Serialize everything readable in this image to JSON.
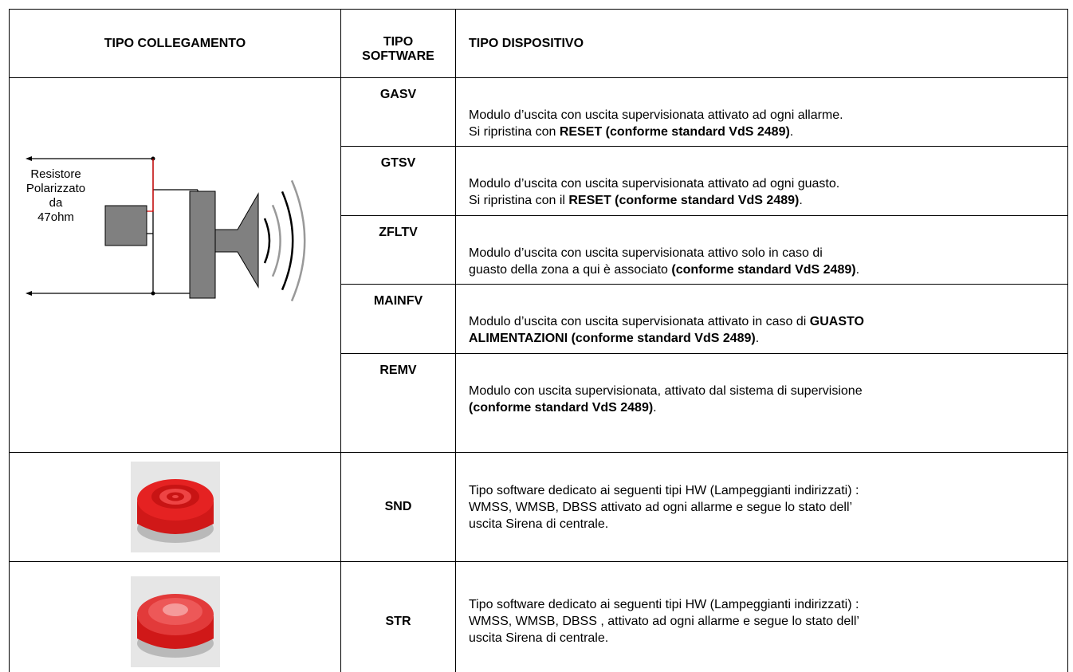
{
  "header": {
    "col1": "TIPO COLLEGAMENTO",
    "col2": "TIPO SOFTWARE",
    "col3": "TIPO DISPOSITIVO"
  },
  "diagram": {
    "labels": [
      "Resistore",
      "Polarizzato",
      "da",
      "47ohm"
    ]
  },
  "rows": [
    {
      "software": "GASV",
      "lines": [
        [
          {
            "t": "Modulo d’uscita con uscita supervisionata attivato ad ogni allarme.",
            "b": false
          }
        ],
        [
          {
            "t": "Si ripristina con ",
            "b": false
          },
          {
            "t": "RESET (conforme standard VdS 2489)",
            "b": true
          },
          {
            "t": ".",
            "b": false
          }
        ]
      ]
    },
    {
      "software": "GTSV",
      "lines": [
        [
          {
            "t": "Modulo d’uscita con uscita supervisionata attivato ad ogni guasto.",
            "b": false
          }
        ],
        [
          {
            "t": "Si ripristina con il ",
            "b": false
          },
          {
            "t": "RESET (conforme standard VdS 2489)",
            "b": true
          },
          {
            "t": ".",
            "b": false
          }
        ]
      ]
    },
    {
      "software": "ZFLTV",
      "lines": [
        [
          {
            "t": "Modulo d’uscita con uscita supervisionata attivo solo in caso di",
            "b": false
          }
        ],
        [
          {
            "t": "guasto della zona a qui è associato ",
            "b": false
          },
          {
            "t": "(conforme standard VdS 2489)",
            "b": true
          },
          {
            "t": ".",
            "b": false
          }
        ]
      ]
    },
    {
      "software": "MAINFV",
      "lines": [
        [
          {
            "t": "Modulo d’uscita con uscita supervisionata attivato in caso di ",
            "b": false
          },
          {
            "t": "GUASTO",
            "b": true
          }
        ],
        [
          {
            "t": "ALIMENTAZIONI (conforme standard VdS 2489)",
            "b": true
          },
          {
            "t": ".",
            "b": false
          }
        ]
      ]
    },
    {
      "software": "REMV",
      "lines": [
        [
          {
            "t": "Modulo con uscita supervisionata, attivato dal sistema di supervisione",
            "b": false
          }
        ],
        [
          {
            "t": "(conforme standard VdS 2489)",
            "b": true
          },
          {
            "t": ".",
            "b": false
          }
        ]
      ]
    },
    {
      "software": "SND",
      "lines": [
        [
          {
            "t": "Tipo software dedicato ai seguenti tipi HW (Lampeggianti indirizzati) :",
            "b": false
          }
        ],
        [
          {
            "t": " WMSS, WMSB, DBSS  attivato ad ogni allarme e segue lo stato dell’",
            "b": false
          }
        ],
        [
          {
            "t": "uscita Sirena di centrale.",
            "b": false
          }
        ]
      ]
    },
    {
      "software": "STR",
      "lines": [
        [
          {
            "t": "Tipo software dedicato ai seguenti tipi HW (Lampeggianti indirizzati) :",
            "b": false
          }
        ],
        [
          {
            "t": " WMSS, WMSB, DBSS , attivato ad ogni allarme e segue lo stato dell’",
            "b": false
          }
        ],
        [
          {
            "t": "uscita Sirena di centrale.",
            "b": false
          }
        ]
      ]
    }
  ]
}
